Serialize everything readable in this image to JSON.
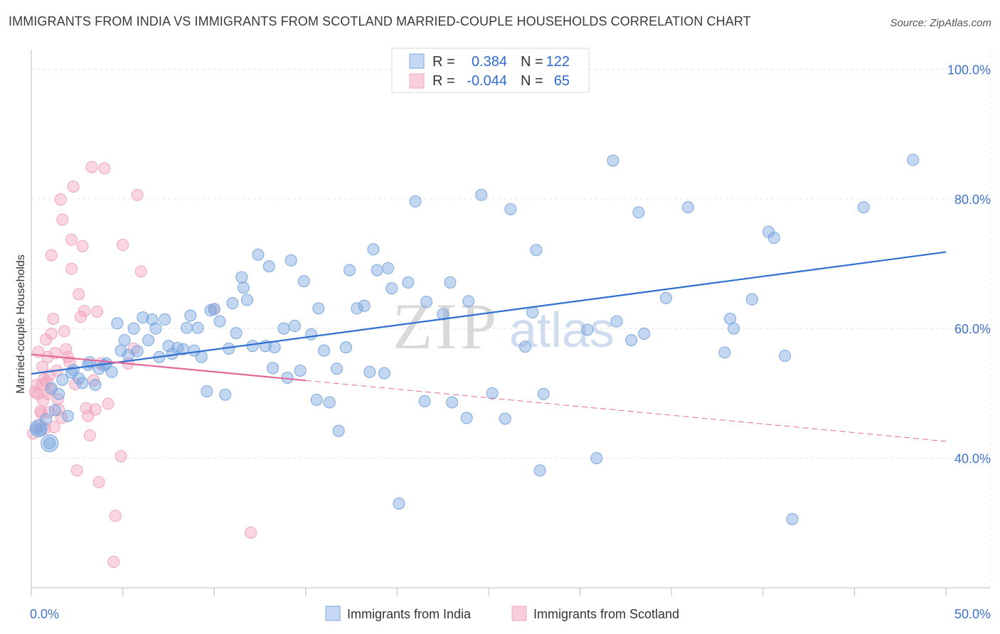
{
  "title": "IMMIGRANTS FROM INDIA VS IMMIGRANTS FROM SCOTLAND MARRIED-COUPLE HOUSEHOLDS CORRELATION CHART",
  "source": "Source: ZipAtlas.com",
  "watermark": {
    "zip": "ZIP",
    "atlas": "atlas"
  },
  "colors": {
    "india": "#7ba7e0",
    "india_line": "#2f6fd0",
    "scotland": "#f2a5bd",
    "scotland_line": "#e3689a",
    "tick": "#3f73c8"
  },
  "chart_data": {
    "type": "scatter",
    "xlabel": "",
    "ylabel": "Married-couple Households",
    "xlim": [
      0,
      50
    ],
    "ylim": [
      20,
      103
    ],
    "x_tick_labels": [
      "0.0%",
      "50.0%"
    ],
    "y_ticks": [
      40,
      60,
      80,
      100
    ],
    "y_tick_labels": [
      "40.0%",
      "60.0%",
      "80.0%",
      "100.0%"
    ],
    "grid": true,
    "legend": [
      {
        "r_label": "R =",
        "r_value": "0.384",
        "n_label": "N =",
        "n_value": "122"
      },
      {
        "r_label": "R =",
        "r_value": "-0.044",
        "n_label": "N =",
        "n_value": "65"
      }
    ],
    "series": [
      {
        "name": "Immigrants from India",
        "trend": {
          "x0": 0,
          "y0": 53.0,
          "x1": 50,
          "y1": 71.8,
          "solid_to": 50
        },
        "points": [
          [
            0.3,
            44.6
          ],
          [
            0.5,
            44.4
          ],
          [
            0.8,
            46
          ],
          [
            1,
            42.3
          ],
          [
            1.1,
            50.8
          ],
          [
            1.3,
            47.4
          ],
          [
            1.5,
            49.9
          ],
          [
            1.7,
            52.1
          ],
          [
            2,
            46.5
          ],
          [
            2.2,
            53.2
          ],
          [
            2.3,
            53.6
          ],
          [
            2.6,
            52.3
          ],
          [
            2.8,
            51.6
          ],
          [
            3.1,
            54.4
          ],
          [
            3.2,
            54.8
          ],
          [
            3.5,
            51.3
          ],
          [
            3.7,
            53.8
          ],
          [
            4,
            54.3
          ],
          [
            4.1,
            54.6
          ],
          [
            4.4,
            53.3
          ],
          [
            4.7,
            60.8
          ],
          [
            4.9,
            56.6
          ],
          [
            5.1,
            58.2
          ],
          [
            5.3,
            55.9
          ],
          [
            5.6,
            60
          ],
          [
            5.8,
            56.5
          ],
          [
            6.1,
            61.7
          ],
          [
            6.4,
            58.2
          ],
          [
            6.6,
            61.4
          ],
          [
            6.8,
            60
          ],
          [
            7,
            55.6
          ],
          [
            7.3,
            61.4
          ],
          [
            7.5,
            57.3
          ],
          [
            7.7,
            56.1
          ],
          [
            8,
            57
          ],
          [
            8.3,
            56.8
          ],
          [
            8.5,
            60.1
          ],
          [
            8.7,
            62
          ],
          [
            8.9,
            56.6
          ],
          [
            9.1,
            60.1
          ],
          [
            9.3,
            55.6
          ],
          [
            9.6,
            50.3
          ],
          [
            9.8,
            62.8
          ],
          [
            10,
            63
          ],
          [
            10.3,
            61.1
          ],
          [
            10.6,
            49.8
          ],
          [
            10.8,
            56.9
          ],
          [
            11,
            63.9
          ],
          [
            11.2,
            59.3
          ],
          [
            11.5,
            67.9
          ],
          [
            11.6,
            66.3
          ],
          [
            11.8,
            64.4
          ],
          [
            12.1,
            57.3
          ],
          [
            12.4,
            71.4
          ],
          [
            12.8,
            57.3
          ],
          [
            13,
            69.6
          ],
          [
            13.2,
            53.9
          ],
          [
            13.3,
            57.1
          ],
          [
            13.8,
            60
          ],
          [
            14,
            52.4
          ],
          [
            14.2,
            70.5
          ],
          [
            14.4,
            60.4
          ],
          [
            14.7,
            53.5
          ],
          [
            14.9,
            67.3
          ],
          [
            15.3,
            59.1
          ],
          [
            15.6,
            49
          ],
          [
            15.7,
            63.1
          ],
          [
            16,
            56.6
          ],
          [
            16.3,
            48.6
          ],
          [
            16.7,
            53.8
          ],
          [
            16.8,
            44.2
          ],
          [
            17.2,
            57.1
          ],
          [
            17.4,
            69
          ],
          [
            17.8,
            63.1
          ],
          [
            18.2,
            63.5
          ],
          [
            18.5,
            53.3
          ],
          [
            18.7,
            72.2
          ],
          [
            18.9,
            69
          ],
          [
            19.3,
            53.1
          ],
          [
            19.5,
            69.3
          ],
          [
            19.7,
            66.2
          ],
          [
            20.1,
            33
          ],
          [
            20.6,
            67.1
          ],
          [
            21,
            79.6
          ],
          [
            21.5,
            48.8
          ],
          [
            21.6,
            64.1
          ],
          [
            22.5,
            62.2
          ],
          [
            22.9,
            67.1
          ],
          [
            23,
            48.6
          ],
          [
            23.8,
            46.2
          ],
          [
            23.9,
            64.2
          ],
          [
            24.6,
            80.6
          ],
          [
            25.2,
            50
          ],
          [
            25.9,
            46.1
          ],
          [
            26.2,
            78.4
          ],
          [
            27,
            57.2
          ],
          [
            27.4,
            62.5
          ],
          [
            27.6,
            72.1
          ],
          [
            27.8,
            38.1
          ],
          [
            28,
            49.9
          ],
          [
            30.4,
            59.8
          ],
          [
            30.9,
            40
          ],
          [
            31.8,
            85.9
          ],
          [
            32,
            61.1
          ],
          [
            32.8,
            58.2
          ],
          [
            33.2,
            77.9
          ],
          [
            33.5,
            59.2
          ],
          [
            34.7,
            64.7
          ],
          [
            35.9,
            78.7
          ],
          [
            37.9,
            56.3
          ],
          [
            38.2,
            61.5
          ],
          [
            38.4,
            60
          ],
          [
            39.4,
            64.5
          ],
          [
            40.3,
            74.9
          ],
          [
            40.6,
            74
          ],
          [
            41.2,
            55.8
          ],
          [
            41.6,
            30.6
          ],
          [
            45.5,
            78.7
          ],
          [
            48.2,
            86
          ]
        ]
      },
      {
        "name": "Immigrants from Scotland",
        "trend": {
          "x0": 0,
          "y0": 56.0,
          "x1": 50,
          "y1": 42.6,
          "solid_to": 15
        },
        "points": [
          [
            0.1,
            43.8
          ],
          [
            0.2,
            50.2
          ],
          [
            0.3,
            51.3
          ],
          [
            0.4,
            56.4
          ],
          [
            0.5,
            47.2
          ],
          [
            0.6,
            54.1
          ],
          [
            0.6,
            51.4
          ],
          [
            0.7,
            52.2
          ],
          [
            0.8,
            58.3
          ],
          [
            0.9,
            55.6
          ],
          [
            0.9,
            49.9
          ],
          [
            1,
            52.8
          ],
          [
            1.1,
            59.2
          ],
          [
            1.1,
            71.3
          ],
          [
            1.2,
            61.5
          ],
          [
            1.3,
            56.2
          ],
          [
            1.4,
            53.5
          ],
          [
            1.5,
            47.5
          ],
          [
            1.6,
            79.9
          ],
          [
            1.7,
            76.8
          ],
          [
            1.8,
            59.6
          ],
          [
            1.9,
            56.8
          ],
          [
            2,
            55.6
          ],
          [
            2.1,
            54.8
          ],
          [
            2.2,
            73.7
          ],
          [
            2.2,
            69.2
          ],
          [
            2.3,
            81.9
          ],
          [
            2.4,
            51.4
          ],
          [
            2.5,
            38.1
          ],
          [
            2.6,
            65.3
          ],
          [
            2.7,
            61.8
          ],
          [
            2.8,
            72.7
          ],
          [
            2.9,
            62.7
          ],
          [
            3,
            47.7
          ],
          [
            3.1,
            46.5
          ],
          [
            3.2,
            43.5
          ],
          [
            3.3,
            84.9
          ],
          [
            3.4,
            52
          ],
          [
            3.5,
            47.5
          ],
          [
            3.6,
            62.6
          ],
          [
            3.7,
            36.3
          ],
          [
            3.8,
            54.6
          ],
          [
            4.0,
            84.7
          ],
          [
            4.2,
            48.4
          ],
          [
            4.5,
            24
          ],
          [
            4.6,
            31.1
          ],
          [
            4.9,
            40.3
          ],
          [
            5.0,
            72.9
          ],
          [
            5.3,
            54.6
          ],
          [
            5.6,
            56.9
          ],
          [
            5.8,
            80.6
          ],
          [
            6.0,
            68.8
          ],
          [
            0.35,
            49.9
          ],
          [
            0.45,
            45.1
          ],
          [
            0.55,
            46.9
          ],
          [
            0.65,
            48.9
          ],
          [
            0.75,
            44.6
          ],
          [
            0.85,
            51.8
          ],
          [
            0.95,
            47.1
          ],
          [
            1.05,
            50.6
          ],
          [
            1.25,
            44.8
          ],
          [
            1.45,
            49.1
          ],
          [
            1.65,
            46.2
          ],
          [
            12.0,
            28.5
          ],
          [
            10.0,
            63
          ]
        ]
      }
    ]
  },
  "bottom_legend": [
    "Immigrants from India",
    "Immigrants from Scotland"
  ]
}
